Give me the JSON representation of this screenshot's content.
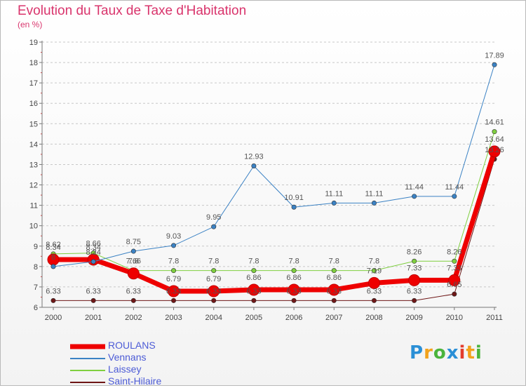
{
  "header": {
    "title": "Evolution du Taux de Taxe d'Habitation",
    "unit": "(en %)"
  },
  "chart_data": {
    "type": "line",
    "title": "Evolution du Taux de Taxe d'Habitation",
    "ylabel": "(en %)",
    "xlabel": "",
    "x": [
      "2000",
      "2001",
      "2002",
      "2003",
      "2004",
      "2005",
      "2006",
      "2007",
      "2008",
      "2009",
      "2010",
      "2011"
    ],
    "ylim": [
      6,
      19
    ],
    "yticks": [
      "6",
      "7",
      "8",
      "9",
      "10",
      "11",
      "12",
      "13",
      "14",
      "15",
      "16",
      "17",
      "18",
      "19"
    ],
    "grid": "horizontal dashed",
    "legend": "bottom-left",
    "series": [
      {
        "name": "ROULANS",
        "color": "#ee0000",
        "width": 7,
        "marker": 8,
        "values": [
          8.34,
          8.34,
          7.66,
          6.79,
          6.79,
          6.86,
          6.86,
          6.86,
          7.19,
          7.33,
          7.33,
          13.64
        ],
        "labels": [
          "8.34",
          "8.34",
          "7.66",
          "6.79",
          "6.79",
          "6.86",
          "6.86",
          "6.86",
          "7.19",
          "7.33",
          "7.33",
          "13.64"
        ]
      },
      {
        "name": "Vennans",
        "color": "#3b82c4",
        "width": 1,
        "marker": 3.2,
        "values": [
          8.0,
          8.24,
          8.75,
          9.03,
          9.95,
          12.93,
          10.91,
          11.11,
          11.11,
          11.44,
          11.44,
          17.89
        ],
        "labels": [
          "8",
          "8.24",
          "8.75",
          "9.03",
          "9.95",
          "12.93",
          "10.91",
          "11.11",
          "11.11",
          "11.44",
          "11.44",
          "17.89"
        ]
      },
      {
        "name": "Laissey",
        "color": "#7fcf3f",
        "width": 1,
        "marker": 3.2,
        "values": [
          8.62,
          8.66,
          7.8,
          7.8,
          7.8,
          7.8,
          7.8,
          7.8,
          7.8,
          8.26,
          8.26,
          14.61
        ],
        "labels": [
          "8.62",
          "8.66",
          "7.8",
          "7.8",
          "7.8",
          "7.8",
          "7.8",
          "7.8",
          "7.8",
          "8.26",
          "8.26",
          "14.61"
        ]
      },
      {
        "name": "Saint-Hilaire",
        "color": "#6e1616",
        "width": 1,
        "marker": 3.2,
        "values": [
          6.33,
          6.33,
          6.33,
          6.33,
          6.33,
          6.33,
          6.33,
          6.33,
          6.33,
          6.33,
          6.65,
          13.26
        ],
        "labels": [
          "6.33",
          "6.33",
          "6.33",
          "6.33",
          "6.33",
          "6.33",
          "6.33",
          "6.33",
          "6.33",
          "6.33",
          "6.65",
          "13.26"
        ]
      }
    ]
  },
  "legend": {
    "items": [
      {
        "label": "ROULANS",
        "color": "#ee0000",
        "width": 7
      },
      {
        "label": "Vennans",
        "color": "#3b82c4",
        "width": 2
      },
      {
        "label": "Laissey",
        "color": "#7fcf3f",
        "width": 2
      },
      {
        "label": "Saint-Hilaire",
        "color": "#6e1616",
        "width": 2
      }
    ]
  },
  "logo": {
    "text": "Proxiti",
    "letters": [
      {
        "ch": "P",
        "color": "#2a8fd6"
      },
      {
        "ch": "r",
        "color": "#f2a21c"
      },
      {
        "ch": "o",
        "color": "#4bb43c"
      },
      {
        "ch": "x",
        "color": "#2a8fd6"
      },
      {
        "ch": "i",
        "color": "#e33c2c"
      },
      {
        "ch": "t",
        "color": "#f2a21c"
      },
      {
        "ch": "i",
        "color": "#4bb43c"
      }
    ]
  }
}
